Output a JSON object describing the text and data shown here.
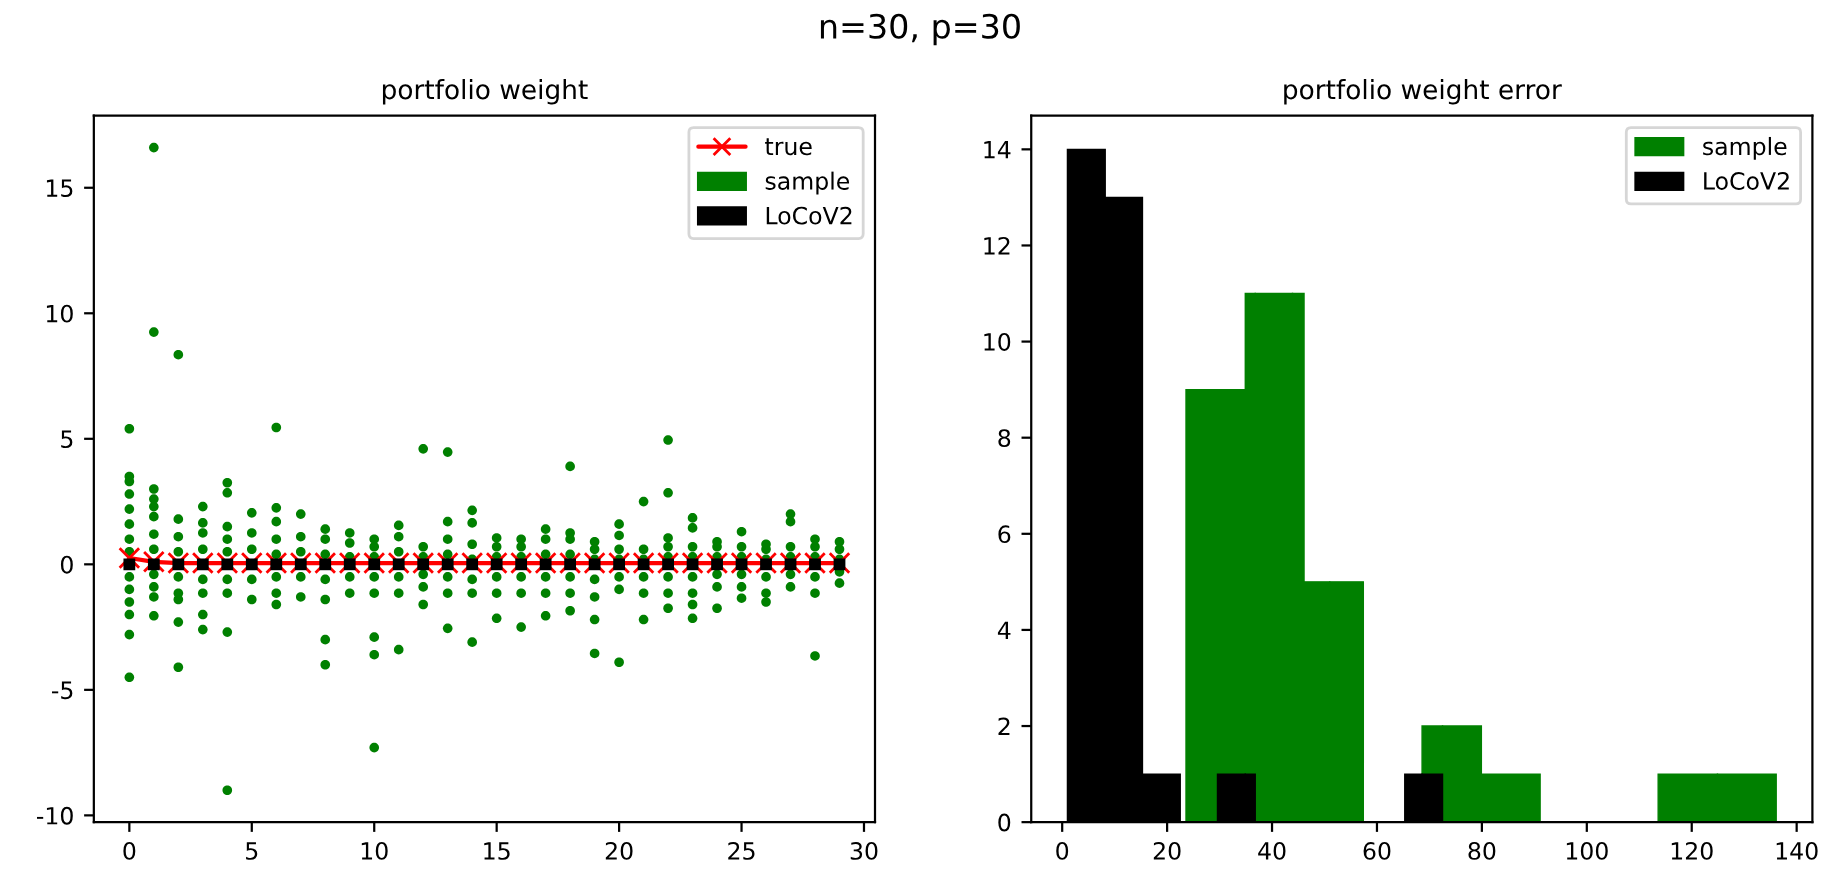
{
  "chart_data": [
    {
      "type": "scatter",
      "title": "portfolio weight",
      "annotations": [
        "n=30, p=30"
      ],
      "series": [
        {
          "name": "true",
          "type": "line",
          "color": "#ff0000",
          "marker": "cross",
          "x": [
            0,
            1,
            2,
            3,
            4,
            5,
            6,
            7,
            8,
            9,
            10,
            11,
            12,
            13,
            14,
            15,
            16,
            17,
            18,
            19,
            20,
            21,
            22,
            23,
            24,
            25,
            26,
            27,
            28,
            29
          ],
          "values": [
            0.25,
            0.1,
            0.05,
            0.05,
            0.05,
            0.05,
            0.05,
            0.05,
            0.05,
            0.05,
            0.05,
            0.05,
            0.05,
            0.05,
            0.05,
            0.05,
            0.05,
            0.05,
            0.05,
            0.05,
            0.05,
            0.05,
            0.05,
            0.05,
            0.05,
            0.05,
            0.05,
            0.05,
            0.05,
            0.05
          ]
        },
        {
          "name": "sample",
          "color": "#008000",
          "marker": "circle",
          "x": [
            0,
            0,
            0,
            0,
            0,
            0,
            0,
            0,
            0,
            0,
            0,
            0,
            0,
            0,
            1,
            1,
            1,
            1,
            1,
            1,
            1,
            1,
            1,
            1,
            1,
            1,
            2,
            2,
            2,
            2,
            2,
            2,
            2,
            2,
            2,
            3,
            3,
            3,
            3,
            3,
            3,
            3,
            3,
            4,
            4,
            4,
            4,
            4,
            4,
            4,
            4,
            4,
            5,
            5,
            5,
            5,
            5,
            6,
            6,
            6,
            6,
            6,
            6,
            6,
            6,
            7,
            7,
            7,
            7,
            7,
            8,
            8,
            8,
            8,
            8,
            8,
            8,
            9,
            9,
            9,
            9,
            9,
            10,
            10,
            10,
            10,
            10,
            10,
            10,
            10,
            11,
            11,
            11,
            11,
            11,
            11,
            12,
            12,
            12,
            12,
            12,
            12,
            13,
            13,
            13,
            13,
            13,
            13,
            13,
            14,
            14,
            14,
            14,
            14,
            14,
            14,
            15,
            15,
            15,
            15,
            15,
            15,
            16,
            16,
            16,
            16,
            16,
            16,
            17,
            17,
            17,
            17,
            17,
            17,
            18,
            18,
            18,
            18,
            18,
            18,
            18,
            19,
            19,
            19,
            19,
            19,
            19,
            19,
            20,
            20,
            20,
            20,
            20,
            20,
            20,
            21,
            21,
            21,
            21,
            21,
            21,
            22,
            22,
            22,
            22,
            22,
            22,
            22,
            22,
            23,
            23,
            23,
            23,
            23,
            23,
            23,
            23,
            24,
            24,
            24,
            24,
            24,
            24,
            25,
            25,
            25,
            25,
            25,
            25,
            26,
            26,
            26,
            26,
            26,
            26,
            27,
            27,
            27,
            27,
            27,
            27,
            28,
            28,
            28,
            28,
            28,
            28,
            29,
            29,
            29,
            29,
            29
          ],
          "values": [
            5.4,
            3.5,
            3.3,
            2.8,
            2.2,
            1.6,
            1.0,
            0.5,
            -0.5,
            -1.0,
            -1.5,
            -2.0,
            -2.8,
            -4.5,
            16.6,
            9.25,
            3.0,
            2.6,
            2.3,
            1.9,
            1.2,
            0.6,
            -0.4,
            -0.9,
            -1.3,
            -2.05,
            8.35,
            1.8,
            1.1,
            0.5,
            -0.5,
            -1.15,
            -1.4,
            -2.3,
            -4.1,
            2.3,
            1.65,
            1.25,
            0.6,
            -0.6,
            -1.15,
            -2.0,
            -2.6,
            3.25,
            2.85,
            1.5,
            1.0,
            0.5,
            -0.6,
            -1.15,
            -2.7,
            -9.0,
            2.05,
            1.25,
            0.6,
            -0.6,
            -1.4,
            5.45,
            2.25,
            1.7,
            1.0,
            0.4,
            -0.5,
            -1.15,
            -1.6,
            2.0,
            1.1,
            0.5,
            -0.5,
            -1.3,
            1.4,
            1.0,
            0.4,
            -0.6,
            -1.4,
            -3.0,
            -4.0,
            1.25,
            0.85,
            0.3,
            -0.5,
            -1.15,
            1.0,
            0.7,
            0.3,
            -0.5,
            -1.15,
            -2.9,
            -3.6,
            -7.3,
            1.55,
            1.1,
            0.5,
            -0.5,
            -1.15,
            -3.4,
            4.6,
            0.7,
            0.3,
            -0.4,
            -0.9,
            -1.6,
            4.47,
            1.7,
            1.0,
            0.4,
            -0.5,
            -1.15,
            -2.55,
            2.15,
            1.65,
            0.8,
            0.2,
            -0.6,
            -1.15,
            -3.1,
            1.05,
            0.7,
            0.3,
            -0.5,
            -1.15,
            -2.15,
            1.0,
            0.7,
            0.3,
            -0.5,
            -1.15,
            -2.5,
            1.4,
            1.0,
            0.4,
            -0.5,
            -1.15,
            -2.05,
            3.9,
            1.25,
            1.0,
            0.4,
            -0.5,
            -1.15,
            -1.85,
            0.9,
            0.6,
            0.2,
            -0.6,
            -1.3,
            -2.2,
            -3.55,
            1.6,
            1.15,
            0.6,
            0.2,
            -0.5,
            -1.0,
            -3.9,
            2.5,
            0.6,
            0.2,
            -0.5,
            -1.15,
            -2.2,
            4.95,
            2.85,
            1.05,
            0.7,
            0.3,
            -0.5,
            -1.15,
            -1.75,
            1.85,
            1.45,
            0.7,
            0.3,
            -0.5,
            -1.15,
            -1.6,
            -2.15,
            0.9,
            0.7,
            0.3,
            -0.4,
            -0.9,
            -1.75,
            1.3,
            0.7,
            0.3,
            -0.4,
            -0.9,
            -1.35,
            0.8,
            0.6,
            0.2,
            -0.5,
            -1.15,
            -1.5,
            2.0,
            1.7,
            0.7,
            0.3,
            -0.4,
            -0.9,
            1.0,
            0.7,
            0.3,
            -0.5,
            -1.15,
            -3.65,
            0.9,
            0.6,
            0.2,
            -0.3,
            -0.75
          ]
        },
        {
          "name": "LoCoV2",
          "color": "#000000",
          "marker": "square",
          "x": [
            0,
            1,
            2,
            3,
            4,
            5,
            6,
            7,
            8,
            9,
            10,
            11,
            12,
            13,
            14,
            15,
            16,
            17,
            18,
            19,
            20,
            21,
            22,
            23,
            24,
            25,
            26,
            27,
            28,
            29
          ],
          "values": [
            0,
            0,
            0,
            0,
            0,
            0,
            0,
            0,
            0,
            0,
            0,
            0,
            0,
            0,
            0,
            0,
            0,
            0,
            0,
            0,
            0,
            0,
            0,
            0,
            0,
            0,
            0,
            0,
            0,
            0
          ]
        }
      ],
      "xlim": [
        -1.45,
        30.45
      ],
      "ylim": [
        -10.27,
        17.87
      ],
      "xticks": [
        0,
        5,
        10,
        15,
        20,
        25,
        30
      ],
      "yticks": [
        -10,
        -5,
        0,
        5,
        10,
        15
      ],
      "legend": "top right",
      "grid": false
    },
    {
      "type": "histogram",
      "title": "portfolio weight error",
      "bins": [
        1.0,
        8.2,
        15.3,
        22.5,
        23.6,
        29.6,
        34.9,
        36.8,
        43.9,
        46.1,
        51.0,
        57.4,
        65.3,
        68.6,
        72.5,
        79.9,
        91.1,
        113.6,
        124.9,
        136.1
      ],
      "series": [
        {
          "name": "sample",
          "color": "#008000",
          "values": [
            0,
            0,
            0,
            0,
            9,
            9,
            11,
            11,
            11,
            5,
            5,
            0,
            0,
            2,
            2,
            1,
            0,
            1,
            1
          ]
        },
        {
          "name": "LoCoV2",
          "color": "#000000",
          "values": [
            14,
            13,
            1,
            0,
            0,
            1,
            1,
            0,
            0,
            0,
            0,
            0,
            1,
            1,
            0,
            0,
            0,
            0,
            0
          ]
        }
      ],
      "xlim": [
        -5.9,
        143
      ],
      "ylim": [
        0,
        14.7
      ],
      "xticks": [
        0,
        20,
        40,
        60,
        80,
        100,
        120,
        140
      ],
      "yticks": [
        0,
        2,
        4,
        6,
        8,
        10,
        12,
        14
      ],
      "legend": "top right",
      "grid": false
    }
  ]
}
